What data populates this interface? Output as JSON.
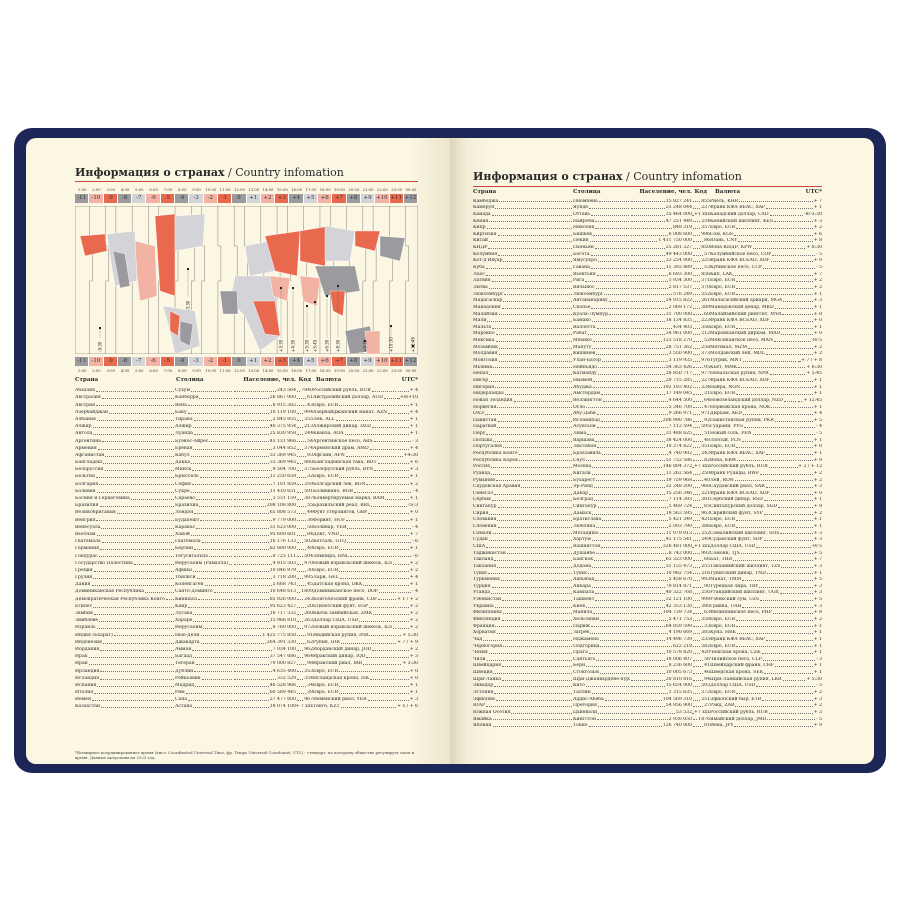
{
  "title_ru": "Информация о странах",
  "title_sep": " / ",
  "title_en": "Country infomation",
  "columns": {
    "country": "Страна",
    "capital": "Столица",
    "population": "Население, чел.",
    "code": "Код",
    "currency": "Валюта",
    "utc": "UTC*"
  },
  "colors": {
    "cover": "#1d2757",
    "page": "#fbf7e3",
    "accent_red": "#e9694f",
    "pink": "#f2b3a4",
    "gray": "#9b9b9f",
    "light_gray": "#d4d4d8",
    "rule": "#c9473c"
  },
  "timezones": {
    "hours": [
      "1:00",
      "2:00",
      "3:00",
      "4:00",
      "5:00",
      "6:00",
      "7:00",
      "8:00",
      "9:00",
      "10:00",
      "11:00",
      "12:00",
      "13:00",
      "14:00",
      "15:00",
      "16:00",
      "17:00",
      "18:00",
      "19:00",
      "20:00",
      "21:00",
      "22:00",
      "23:00",
      "00:00"
    ],
    "offsets": [
      "-11",
      "-10",
      "-9",
      "-8",
      "-7",
      "-6",
      "-5",
      "-4",
      "-3",
      "-2",
      "-1",
      "0",
      "+1",
      "+2",
      "+3",
      "+4",
      "+5",
      "+6",
      "+7",
      "+8",
      "+9",
      "+10",
      "+11",
      "+12"
    ],
    "shades": [
      "gray",
      "pink",
      "red",
      "gray",
      "light",
      "pink",
      "red",
      "gray",
      "light",
      "pink",
      "red",
      "gray",
      "light",
      "pink",
      "red",
      "gray",
      "light",
      "pink",
      "red",
      "gray",
      "light",
      "pink",
      "red",
      "gray"
    ]
  },
  "map_labels": [
    "+5:30",
    "+5:45",
    "+6:30",
    "+8:30",
    "+9:30",
    "+10:30",
    "+12:45",
    "+3:30",
    "+4:30",
    "-3:30",
    "-9:30"
  ],
  "left_rows": [
    [
      "Абхазия",
      "Сухум",
      "243 564",
      "7840",
      "Российский рубль, RUB",
      "+ 4"
    ],
    [
      "Австралия",
      "Канберра",
      "26 867 000",
      "61",
      "Австралийский доллар, AUD",
      "+8/+10"
    ],
    [
      "Австрия",
      "Вена",
      "8 915 382",
      "43",
      "Евро, EUR",
      "+ 1"
    ],
    [
      "Азербайджан",
      "Баку",
      "10 119 100",
      "994",
      "Азербайджанский манат, AZN",
      "+ 4"
    ],
    [
      "Албания",
      "Тирана",
      "2 845 955",
      "355",
      "Лек, ALL",
      "+ 1"
    ],
    [
      "Алжир",
      "Алжир",
      "40 375 954",
      "213",
      "Алжирский динар, DZD",
      "+ 1"
    ],
    [
      "Ангола",
      "Луанда",
      "25 830 958",
      "244",
      "Кванза, AOA",
      "+ 1"
    ],
    [
      "Аргентина",
      "Буэнос-Айрес",
      "43 131 966",
      "54",
      "Аргентинское песо, ARS",
      "- 3"
    ],
    [
      "Армения",
      "Ереван",
      "3 044 852",
      "374",
      "Армянский драм, AMD",
      "+ 4"
    ],
    [
      "Афганистан",
      "Кабул",
      "33 369 945",
      "93",
      "Афгани, AFN",
      "+4:30"
    ],
    [
      "Бангладеш",
      "Дакка",
      "33 369 945",
      "880",
      "Бангладешская така, BDT",
      "+ 6"
    ],
    [
      "Белоруссия",
      "Минск",
      "9 504 700",
      "375",
      "Белорусский рубль, BYN",
      "+ 3"
    ],
    [
      "Бельгия",
      "Брюссель",
      "11 250 659",
      "32",
      "Евро, EUR",
      "+ 1"
    ],
    [
      "Болгария",
      "София",
      "7 101 859",
      "359",
      "Болгарский лев, BGN",
      "+ 2"
    ],
    [
      "Боливия",
      "Сукре",
      "11 410 651",
      "591",
      "Боливиано, BOB",
      "- 4"
    ],
    [
      "Босния и Герцеговина",
      "Сараево",
      "3 531 159",
      "387",
      "Конвертируемая марка, BAM",
      "+ 1"
    ],
    [
      "Бразилия",
      "Бразилиа",
      "208 108 800",
      "55",
      "Бразильский реал, BRL",
      "-5/-3"
    ],
    [
      "Великобритания",
      "Лондон",
      "65 808 573",
      "44",
      "Фунт стерлингов, GBP",
      "+ 0"
    ],
    [
      "Венгрия",
      "Будапешт",
      "9 779 000",
      "36",
      "Форинт, HUF",
      "+ 1"
    ],
    [
      "Венесуэла",
      "Каракас",
      "31 623 000",
      "58",
      "Боливар, VEB",
      "- 4"
    ],
    [
      "Вьетнам",
      "Ханой",
      "95 600 601",
      "84",
      "Донг, VND",
      "+ 7"
    ],
    [
      "Гватемала",
      "Гватемала",
      "16 176 133",
      "502",
      "Кетсаль, GTQ",
      "- 6"
    ],
    [
      "Германия",
      "Берлин",
      "82 800 000",
      "49",
      "Евро, EUR",
      "+ 1"
    ],
    [
      "Гондурас",
      "Тегусигальпа",
      "8 725 111",
      "504",
      "Лемпира, HNL",
      "- 6"
    ],
    [
      "Государство Палестина",
      "Иерусалим (Рамалла)",
      "4 815 503",
      "970",
      "Новый израильский шекель, ILS",
      "+ 2"
    ],
    [
      "Греция",
      "Афины",
      "10 846 979",
      "30",
      "Евро, EUR",
      "+ 2"
    ],
    [
      "Грузия",
      "Тбилиси",
      "3 718 200",
      "995",
      "Лари, GEL",
      "+ 4"
    ],
    [
      "Дания",
      "Копенгаген",
      "5 668 743",
      "45",
      "Датская крона, DKK",
      "+ 1"
    ],
    [
      "Доминиканская Республика",
      "Санто-Доминго",
      "10 648 613",
      "1809",
      "Доминиканское песо, DOP",
      "- 4"
    ],
    [
      "Демократическая Республика Конго",
      "Киншаса",
      "85 026 000",
      "243",
      "Конголезский франк, CDF",
      "+ 1 / + 2"
    ],
    [
      "Египет",
      "Каир",
      "95 623 427",
      "20",
      "Египетский фунт, EGP",
      "+ 2"
    ],
    [
      "Замбия",
      "Лусака",
      "16 717 332",
      "260",
      "Квача замбийская, ZMK",
      "+ 2"
    ],
    [
      "Зимбабве",
      "Хараре",
      "15 966 810",
      "263",
      "Доллар США, USD",
      "+ 2"
    ],
    [
      "Израиль",
      "Иерусалим",
      "8 760 000",
      "972",
      "Новый израильский шекель, ILS",
      "+ 2"
    ],
    [
      "Индия (Бхарат)",
      "Нью-Дели",
      "1 425 775 850",
      "91",
      "Индийская рупия, INR",
      "+ 5:30"
    ],
    [
      "Индонезия",
      "Джакарта",
      "264 391 330",
      "62",
      "Рупия, IDR",
      "+ 7 / + 9"
    ],
    [
      "Иордания",
      "Амман",
      "7 034 100",
      "962",
      "Иорданский динар, JOD",
      "+ 2"
    ],
    [
      "Ирак",
      "Багдад",
      "37 547 686",
      "964",
      "Иракский динар, IQD",
      "+ 3"
    ],
    [
      "Иран",
      "Тегеран",
      "79 000 827",
      "98",
      "Иранский риал, IRR",
      "+ 3:30"
    ],
    [
      "Ирландия",
      "Дублин",
      "4 635 400",
      "353",
      "Евро, EUR",
      "+ 0"
    ],
    [
      "Исландия",
      "Рейкьявик",
      "332 529",
      "354",
      "Исландская крона, ISK",
      "+ 0"
    ],
    [
      "Испания",
      "Мадрид",
      "46 528 966",
      "34",
      "Евро, EUR",
      "+ 1"
    ],
    [
      "Италия",
      "Рим",
      "60 589 445",
      "39",
      "Евро, EUR",
      "+ 1"
    ],
    [
      "Йемен",
      "Сана",
      "27 477 600",
      "967",
      "Йеменский риал, YER",
      "+ 3"
    ],
    [
      "Казахстан",
      "Астана",
      "18 074 100",
      "+ 7 xxx",
      "Тенге, KZT",
      "+ 5 / + 6"
    ]
  ],
  "footnote": "*Всемирное координированное время (англ. Coordinated Universal Time, фр. Temps Universel Coordonné; UTC) - стандарт, по которому общество регулирует часы и время. Данные актуальны на 2023 год.",
  "right_rows": [
    [
      "Камбоджа",
      "Пномпень",
      "15 827 241",
      "855",
      "Риель, KHR",
      "+ 7"
    ],
    [
      "Камерун",
      "Яунде",
      "23 248 044",
      "237",
      "Франк КФА BEAC, XAF",
      "+ 1"
    ],
    [
      "Канада",
      "Оттава",
      "35 464 000",
      "+1 xxx",
      "Канадский доллар, CAD",
      "-8/-3:30"
    ],
    [
      "Кения",
      "Найроби",
      "47 251 449",
      "254",
      "Кенийский шиллинг, KES",
      "+ 3"
    ],
    [
      "Кипр",
      "Никосия",
      "848 319",
      "357",
      "Евро, EUR",
      "+ 2"
    ],
    [
      "Киргизия",
      "Бишкек",
      "6 008 600",
      "996",
      "Сом, KGS",
      "+ 6"
    ],
    [
      "Китай",
      "Пекин",
      "1 411 750 000",
      "86",
      "Юань, CNY",
      "+ 8"
    ],
    [
      "КНДР",
      "Пхеньян",
      "25 281 327",
      "850",
      "Вона КНДР, KPW",
      "+ 8:30"
    ],
    [
      "Колумбия",
      "Богота",
      "49 443 000",
      "57",
      "Колумбийское песо, COP",
      "- 5"
    ],
    [
      "Кот-д'Ивуар",
      "Ямусукро",
      "23 254 000",
      "225",
      "Франк КФА ВСЕАО, XOF",
      "+ 0"
    ],
    [
      "Куба",
      "Гавана",
      "11 392 889",
      "53",
      "Кубинское песо, CUP",
      "- 5"
    ],
    [
      "Лаос",
      "Вьентьян",
      "6 693 300",
      "856",
      "Кип, LAK",
      "+ 7"
    ],
    [
      "Латвия",
      "Рига",
      "1 934 300",
      "371",
      "Евро, EUR",
      "+ 2"
    ],
    [
      "Литва",
      "Вильнюс",
      "2 817 537",
      "370",
      "Евро, EUR",
      "+ 2"
    ],
    [
      "Люксембург",
      "Люксембург",
      "576 249",
      "352",
      "Евро, EUR",
      "+ 1"
    ],
    [
      "Мадагаскар",
      "Антананариву",
      "24 915 822",
      "261",
      "Малагасийский ариари, MGA",
      "+ 3"
    ],
    [
      "Македония",
      "Скопье",
      "2 069 172",
      "389",
      "Македонский денар, MKD",
      "+ 1"
    ],
    [
      "Малайзия",
      "Куала-Лумпур",
      "31 700 000",
      "60",
      "Малайзийский ринггит, MYR",
      "+ 8"
    ],
    [
      "Мали",
      "Бамако",
      "18 134 835",
      "223",
      "Франк КФА ВСЕАО, XOF",
      "+ 0"
    ],
    [
      "Мальта",
      "Валлетта",
      "434 403",
      "356",
      "Евро, EUR",
      "+ 1"
    ],
    [
      "Марокко",
      "Рабат",
      "34 961 000",
      "212",
      "Марокканский дирхам, MAD",
      "+ 0"
    ],
    [
      "Мексика",
      "Мехико",
      "123 518 270",
      "52",
      "Мексиканское песо, MXN",
      "-8/-5"
    ],
    [
      "Мозамбик",
      "Мапуту",
      "28 751 362",
      "258",
      "Метикал, MZM",
      "+ 2"
    ],
    [
      "Молдавия",
      "Кишинёв",
      "3 550 900",
      "373",
      "Молдавский лей, MDL",
      "+ 2"
    ],
    [
      "Монголия",
      "Улан-Батор",
      "3 119 935",
      "976",
      "Тугрик, MNT",
      "+ 7 / + 8"
    ],
    [
      "Мьянма",
      "Нейпьидо",
      "54 363 426",
      "95",
      "Кьят, MMK",
      "+ 6:30"
    ],
    [
      "Непал",
      "Катманду",
      "28 850 717",
      "977",
      "Непальская рупия, NPR",
      "+ 5:45"
    ],
    [
      "Нигер",
      "Ниамей",
      "20 715 285",
      "227",
      "Франк КФА ВСЕАО, XOF",
      "+ 1"
    ],
    [
      "Нигерия",
      "Абуджа",
      "192 193 402",
      "234",
      "Найра, NGN",
      "+ 1"
    ],
    [
      "Нидерланды",
      "Амстердам",
      "17 149 045",
      "31",
      "Евро, EUR",
      "+ 1"
    ],
    [
      "Новая Зеландия",
      "Веллингтон",
      "4 644 500",
      "64",
      "Новозеландский доллар, NZD",
      "+ 12:45"
    ],
    [
      "Норвегия",
      "Осло",
      "5 346 700",
      "47",
      "Норвежская крона, NOK",
      "+ 1"
    ],
    [
      "ОАЭ",
      "Абу-Даби",
      "9 266 971",
      "971",
      "Дирхам, AED",
      "+ 4"
    ],
    [
      "Пакистан",
      "Исламабад",
      "208 990 786",
      "92",
      "Пакистанская рупия, PKR",
      "+ 5"
    ],
    [
      "Парагвай",
      "Асунсьон",
      "7 112 594",
      "595",
      "Гуарани, PYG",
      "- 4"
    ],
    [
      "Перу",
      "Лима",
      "31 488 625",
      "51",
      "Новый соль, PEN",
      "- 5"
    ],
    [
      "Польша",
      "Варшава",
      "38 424 000",
      "48",
      "Злотый, PLN",
      "+ 1"
    ],
    [
      "Португалия",
      "Лиссабон",
      "10 374 822",
      "351",
      "Евро, EUR",
      "+ 0"
    ],
    [
      "Республика Конго",
      "Браззавиль",
      "4 740 992",
      "242",
      "Франк КФА BEAC, XAF",
      "+ 1"
    ],
    [
      "Республика Корея",
      "Сеул",
      "51 732 586",
      "82",
      "Вона, KRW",
      "+ 9"
    ],
    [
      "Россия",
      "Москва",
      "146 804 372",
      "+7 xxx",
      "Российский рубль, RUB",
      "+ 2 / + 12"
    ],
    [
      "Руанда",
      "Кигали",
      "11 262 564",
      "250",
      "Франк Руанды, RWF",
      "+ 2"
    ],
    [
      "Румыния",
      "Бухарест",
      "19 759 968",
      "40",
      "Лей, RON",
      "+ 2"
    ],
    [
      "Саудовская Аравия",
      "Эр-Рияд",
      "32 248 200",
      "966",
      "Саудовский риал, SAR",
      "+ 3"
    ],
    [
      "Сенегал",
      "Дакар",
      "15 256 346",
      "221",
      "Франк КФА ВСЕАО, XOF",
      "+ 0"
    ],
    [
      "Сербия",
      "Белград",
      "7 114 393",
      "381",
      "Сербский динар, RSD",
      "+ 1"
    ],
    [
      "Сингапур",
      "Сингапур",
      "5 469 724",
      "65",
      "Сингапурский доллар, SGD",
      "+ 8"
    ],
    [
      "Сирия",
      "Дамаск",
      "18 563 595",
      "963",
      "Сирийский фунт, SYP",
      "+ 2"
    ],
    [
      "Словакия",
      "Братислава",
      "5 421 349",
      "421",
      "Евро, EUR",
      "+ 1"
    ],
    [
      "Словения",
      "Любляна",
      "2 093 790",
      "386",
      "Евро, EUR",
      "+ 1"
    ],
    [
      "Сомали",
      "Могадишо",
      "11 079 013",
      "252",
      "Сомалийский шиллинг, SOS",
      "+ 3"
    ],
    [
      "Судан",
      "Хартум",
      "41 175 541",
      "249",
      "Суданский фунт, SDP",
      "+ 3"
    ],
    [
      "США",
      "Вашингтон",
      "326 481 000",
      "+1 xxx",
      "Доллар США, USD",
      "-9/-5"
    ],
    [
      "Таджикистан",
      "Душанбе",
      "8 742 000",
      "992",
      "Сомони, TJS",
      "+ 5"
    ],
    [
      "Таиланд",
      "Бангкок",
      "65 323 000",
      "66",
      "Бат, THB",
      "+ 7"
    ],
    [
      "Танзания",
      "Додома",
      "51 155 473",
      "255",
      "Танзанийский шиллинг, TZS",
      "+ 3"
    ],
    [
      "Тунис",
      "Тунис",
      "10 982 754",
      "216",
      "Тунисский динар, TND",
      "+ 1"
    ],
    [
      "Туркмения",
      "Ашхабад",
      "5 458 670",
      "993",
      "Манат, TMM",
      "+ 5"
    ],
    [
      "Турция",
      "Анкара",
      "79 814 871",
      "90",
      "Турецкая лира, TRY",
      "+ 3"
    ],
    [
      "Уганда",
      "Кампала",
      "40 322 768",
      "256",
      "Угандийский шиллинг, UGX",
      "+ 3"
    ],
    [
      "Узбекистан",
      "Ташкент",
      "32 121 100",
      "998",
      "Узбекский сум, UZS",
      "+ 5"
    ],
    [
      "Украина",
      "Киев",
      "42 353 130",
      "380",
      "Гривна, UAH",
      "+ 3"
    ],
    [
      "Филиппины",
      "Манила",
      "104 739 734",
      "63",
      "Филиппинское песо, PHP",
      "+ 8"
    ],
    [
      "Финляндия",
      "Хельсинки",
      "5 471 753",
      "358",
      "Евро, EUR",
      "+ 2"
    ],
    [
      "Франция",
      "Париж",
      "64 859 599",
      "33",
      "Евро, EUR",
      "+ 1"
    ],
    [
      "Хорватия",
      "Загреб",
      "4 190 669",
      "385",
      "Куна, HRK",
      "+ 1"
    ],
    [
      "Чад",
      "Нджамена",
      "14 496 739",
      "235",
      "Франк КФА BEAC, XAF",
      "+ 1"
    ],
    [
      "Черногория",
      "Подгорица",
      "622 218",
      "382",
      "Евро, EUR",
      "+ 1"
    ],
    [
      "Чехия",
      "Прага",
      "10 578 820",
      "420",
      "Чешская крона, CZK",
      "+ 1"
    ],
    [
      "Чили",
      "Сантьяго",
      "18 006 407",
      "56",
      "Чилийское песо, CLP",
      "- 3"
    ],
    [
      "Швейцария",
      "Берн",
      "8 236 600",
      "41",
      "Швейцарский франк, CHF",
      "+ 1"
    ],
    [
      "Швеция",
      "Стокгольм",
      "10 005 673",
      "46",
      "Шведская крона, SEK",
      "+ 1"
    ],
    [
      "Шри-Ланка",
      "Шри-Джаявардене-пура-Котте",
      "20 810 816",
      "94",
      "Шри-Ланкийская рупия, LKR",
      "+ 5:30"
    ],
    [
      "Эквадор",
      "Кито",
      "15 654 000",
      "593",
      "Доллар США, USD",
      "- 5"
    ],
    [
      "Эстония",
      "Таллин",
      "1 315 635",
      "372",
      "Евро, EUR",
      "+ 2"
    ],
    [
      "Эфиопия",
      "Аддис-Абеба",
      "104 569 310",
      "251",
      "Эфиопский быр, ETB",
      "+ 3"
    ],
    [
      "ЮАР",
      "Претория",
      "54 956 900",
      "27",
      "Рэнд, ZAR",
      "+ 2"
    ],
    [
      "Южная Осетия",
      "Цхинвали",
      "53 532",
      "+7 xxx",
      "Российский рубль, RUB",
      "+ 3"
    ],
    [
      "Ямайка",
      "Кингстон",
      "2 930 050",
      "1876",
      "Ямайский доллар, JMD",
      "- 5"
    ],
    [
      "Япония",
      "Токио",
      "126 740 000",
      "81",
      "Иена, JPY",
      "+ 9"
    ]
  ]
}
